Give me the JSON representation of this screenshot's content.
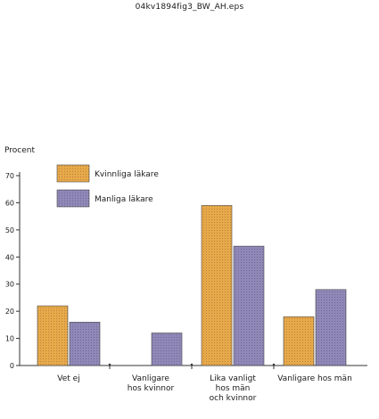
{
  "caption": "04kv1894fig3_BW_AH.eps",
  "chart_data": {
    "type": "bar",
    "ylabel": "Procent",
    "ylim": [
      0,
      70
    ],
    "yticks": [
      0,
      10,
      20,
      30,
      40,
      50,
      60,
      70
    ],
    "categories": [
      [
        "Vet ej"
      ],
      [
        "Vanligare",
        "hos kvinnor"
      ],
      [
        "Lika vanligt",
        "hos män",
        "och kvinnor"
      ],
      [
        "Vanligare hos män"
      ]
    ],
    "series": [
      {
        "name": "Kvinnliga läkare",
        "values": [
          22,
          0,
          59,
          18
        ],
        "color": "#e8a94a"
      },
      {
        "name": "Manliga läkare",
        "values": [
          16,
          12,
          44,
          28
        ],
        "color": "#8f88b8"
      }
    ],
    "legend": "top-left",
    "grid": false
  }
}
